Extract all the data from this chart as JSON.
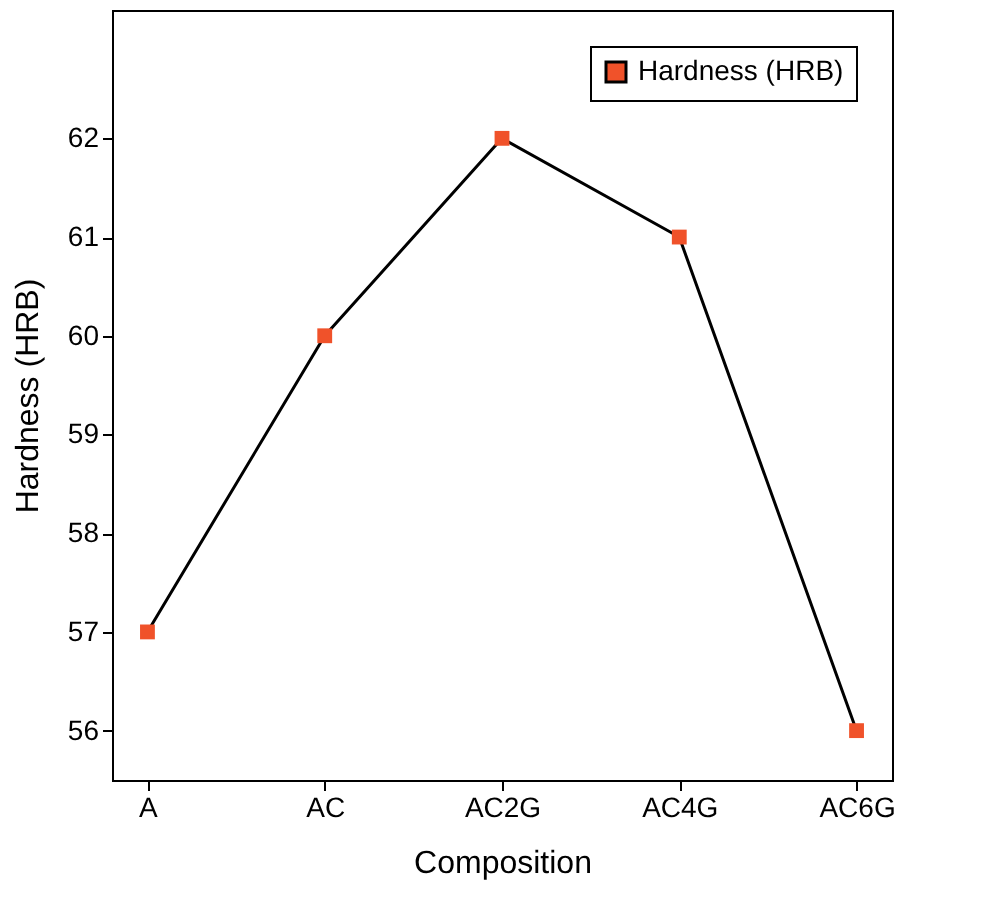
{
  "chart_data": {
    "type": "line",
    "xlabel": "Composition",
    "ylabel": "Hardness (HRB)",
    "categories": [
      "A",
      "AC",
      "AC2G",
      "AC4G",
      "AC6G"
    ],
    "series": [
      {
        "name": "Hardness (HRB)",
        "color": "#f0522a",
        "values": [
          57,
          60,
          62,
          61,
          56
        ]
      }
    ],
    "ylim": [
      55.5,
      63.3
    ],
    "yticks": [
      56,
      57,
      58,
      59,
      60,
      61,
      62
    ],
    "marker": "square",
    "line_style": "solid",
    "legend": "top right",
    "grid": false
  }
}
